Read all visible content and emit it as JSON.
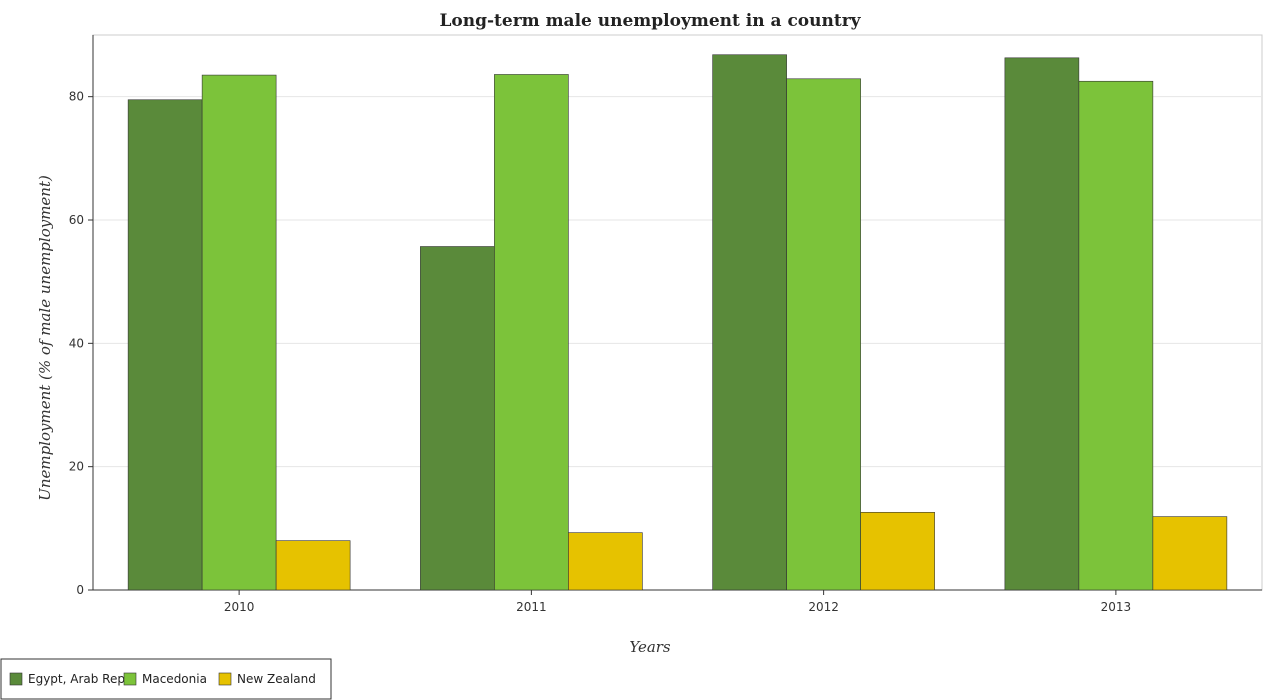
{
  "chart_data": {
    "type": "bar",
    "title": "Long-term male unemployment in a country",
    "xlabel": "Years",
    "ylabel": "Unemployment (% of male unemployment)",
    "categories": [
      "2010",
      "2011",
      "2012",
      "2013"
    ],
    "ylim": [
      0,
      90
    ],
    "yticks": [
      0,
      20,
      40,
      60,
      80
    ],
    "grid": true,
    "legend_position": "bottom-left",
    "series": [
      {
        "name": "Egypt, Arab Rep.",
        "color": "#5a8a3a",
        "values": [
          79.5,
          55.7,
          86.8,
          86.3
        ]
      },
      {
        "name": "Macedonia",
        "color": "#7cc33a",
        "values": [
          83.5,
          83.6,
          82.9,
          82.5
        ]
      },
      {
        "name": "New Zealand",
        "color": "#e6c200",
        "values": [
          8.0,
          9.3,
          12.6,
          11.9
        ]
      }
    ]
  }
}
